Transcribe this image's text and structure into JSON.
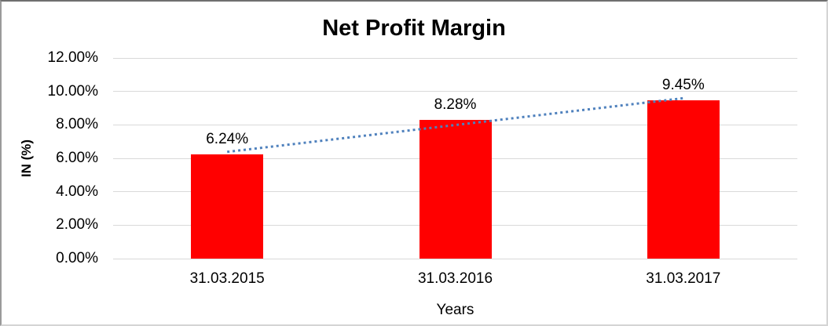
{
  "chart_data": {
    "type": "bar",
    "title": "Net Profit Margin",
    "categories": [
      "31.03.2015",
      "31.03.2016",
      "31.03.2017"
    ],
    "series": [
      {
        "name": "Net Profit Margin",
        "values": [
          6.24,
          8.28,
          9.45
        ]
      }
    ],
    "data_labels": [
      "6.24%",
      "8.28%",
      "9.45%"
    ],
    "xlabel": "Years",
    "ylabel": "IN (%)",
    "ylim": [
      0,
      12
    ],
    "ytick_step": 2,
    "ytick_labels": [
      "0.00%",
      "2.00%",
      "4.00%",
      "6.00%",
      "8.00%",
      "10.00%",
      "12.00%"
    ],
    "grid": true,
    "legend": "none",
    "bar_color": "#FF0000",
    "gridline_color": "#D9D9D9",
    "text_color": "#000000",
    "trendline": {
      "type": "linear",
      "style": "dotted",
      "color": "#4F81BD"
    }
  }
}
